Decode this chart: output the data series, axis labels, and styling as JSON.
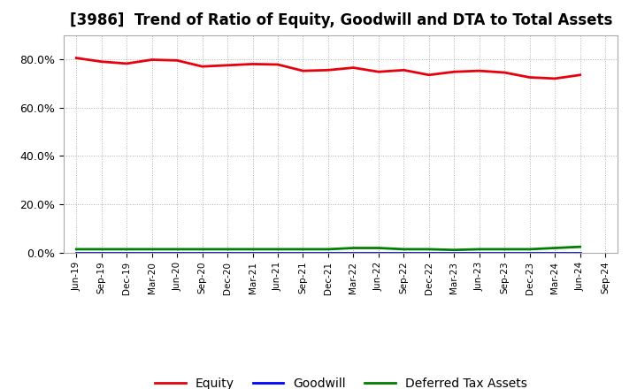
{
  "title": "[3986]  Trend of Ratio of Equity, Goodwill and DTA to Total Assets",
  "x_labels": [
    "Jun-19",
    "Sep-19",
    "Dec-19",
    "Mar-20",
    "Jun-20",
    "Sep-20",
    "Dec-20",
    "Mar-21",
    "Jun-21",
    "Sep-21",
    "Dec-21",
    "Mar-22",
    "Jun-22",
    "Sep-22",
    "Dec-22",
    "Mar-23",
    "Jun-23",
    "Sep-23",
    "Dec-23",
    "Mar-24",
    "Jun-24",
    "Sep-24"
  ],
  "equity": [
    80.5,
    79.0,
    78.2,
    79.8,
    79.5,
    77.0,
    77.5,
    78.0,
    77.8,
    75.2,
    75.5,
    76.5,
    74.8,
    75.5,
    73.5,
    74.8,
    75.2,
    74.5,
    72.5,
    72.0,
    73.5,
    null
  ],
  "goodwill": [
    0.0,
    0.0,
    0.0,
    0.0,
    0.0,
    0.0,
    0.0,
    0.0,
    0.0,
    0.0,
    0.0,
    0.0,
    0.0,
    0.0,
    0.0,
    0.0,
    0.0,
    0.0,
    0.0,
    0.0,
    0.0,
    null
  ],
  "dta": [
    1.5,
    1.5,
    1.5,
    1.5,
    1.5,
    1.5,
    1.5,
    1.5,
    1.5,
    1.5,
    1.5,
    2.0,
    2.0,
    1.5,
    1.5,
    1.2,
    1.5,
    1.5,
    1.5,
    2.0,
    2.5,
    null
  ],
  "equity_color": "#e8000d",
  "goodwill_color": "#0000ff",
  "dta_color": "#008000",
  "ylim": [
    0,
    90
  ],
  "yticks": [
    0,
    20,
    40,
    60,
    80
  ],
  "ytick_labels": [
    "0.0%",
    "20.0%",
    "40.0%",
    "60.0%",
    "80.0%"
  ],
  "background_color": "#ffffff",
  "plot_bg_color": "#ffffff",
  "grid_color": "#b0b0b0",
  "title_fontsize": 12,
  "legend_labels": [
    "Equity",
    "Goodwill",
    "Deferred Tax Assets"
  ],
  "linewidth": 2.0
}
